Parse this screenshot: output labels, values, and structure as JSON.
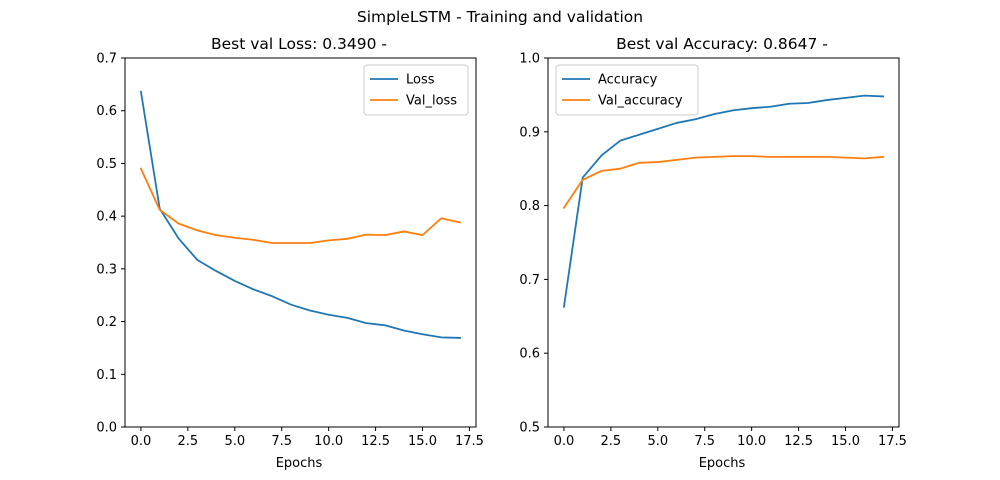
{
  "figure": {
    "suptitle": "SimpleLSTM - Training and validation"
  },
  "chart_data": [
    {
      "type": "line",
      "title": "Best val Loss: 0.3490 -",
      "xlabel": "Epochs",
      "ylabel": "",
      "x": [
        0,
        1,
        2,
        3,
        4,
        5,
        6,
        7,
        8,
        9,
        10,
        11,
        12,
        13,
        14,
        15,
        16,
        17
      ],
      "xlim": [
        -0.85,
        17.85
      ],
      "ylim": [
        0.0,
        0.7
      ],
      "xticks": [
        0.0,
        2.5,
        5.0,
        7.5,
        10.0,
        12.5,
        15.0,
        17.5
      ],
      "xtick_labels": [
        "0.0",
        "2.5",
        "5.0",
        "7.5",
        "10.0",
        "12.5",
        "15.0",
        "17.5"
      ],
      "yticks": [
        0.0,
        0.1,
        0.2,
        0.3,
        0.4,
        0.5,
        0.6,
        0.7
      ],
      "ytick_labels": [
        "0.0",
        "0.1",
        "0.2",
        "0.3",
        "0.4",
        "0.5",
        "0.6",
        "0.7"
      ],
      "legend_position": "top-right",
      "grid": false,
      "series": [
        {
          "name": "Loss",
          "color": "#1f77b4",
          "values": [
            0.636,
            0.414,
            0.358,
            0.317,
            0.296,
            0.277,
            0.261,
            0.248,
            0.232,
            0.221,
            0.213,
            0.207,
            0.197,
            0.193,
            0.183,
            0.176,
            0.17,
            0.169
          ]
        },
        {
          "name": "Val_loss",
          "color": "#ff7f0e",
          "values": [
            0.49,
            0.412,
            0.386,
            0.373,
            0.364,
            0.359,
            0.355,
            0.349,
            0.349,
            0.349,
            0.354,
            0.357,
            0.365,
            0.364,
            0.371,
            0.364,
            0.396,
            0.388
          ]
        }
      ]
    },
    {
      "type": "line",
      "title": "Best val Accuracy: 0.8647 -",
      "xlabel": "Epochs",
      "ylabel": "",
      "x": [
        0,
        1,
        2,
        3,
        4,
        5,
        6,
        7,
        8,
        9,
        10,
        11,
        12,
        13,
        14,
        15,
        16,
        17
      ],
      "xlim": [
        -0.85,
        17.85
      ],
      "ylim": [
        0.5,
        1.0
      ],
      "xticks": [
        0.0,
        2.5,
        5.0,
        7.5,
        10.0,
        12.5,
        15.0,
        17.5
      ],
      "xtick_labels": [
        "0.0",
        "2.5",
        "5.0",
        "7.5",
        "10.0",
        "12.5",
        "15.0",
        "17.5"
      ],
      "yticks": [
        0.5,
        0.6,
        0.7,
        0.8,
        0.9,
        1.0
      ],
      "ytick_labels": [
        "0.5",
        "0.6",
        "0.7",
        "0.8",
        "0.9",
        "1.0"
      ],
      "legend_position": "top-left",
      "grid": false,
      "series": [
        {
          "name": "Accuracy",
          "color": "#1f77b4",
          "values": [
            0.663,
            0.838,
            0.868,
            0.888,
            0.896,
            0.904,
            0.912,
            0.917,
            0.924,
            0.929,
            0.932,
            0.934,
            0.938,
            0.939,
            0.943,
            0.946,
            0.949,
            0.948
          ]
        },
        {
          "name": "Val_accuracy",
          "color": "#ff7f0e",
          "values": [
            0.797,
            0.835,
            0.847,
            0.85,
            0.858,
            0.859,
            0.862,
            0.865,
            0.866,
            0.867,
            0.867,
            0.866,
            0.866,
            0.866,
            0.866,
            0.865,
            0.864,
            0.866
          ]
        }
      ]
    }
  ]
}
